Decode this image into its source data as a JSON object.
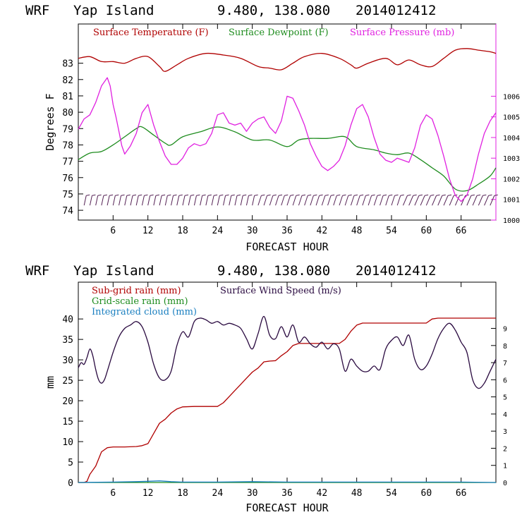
{
  "chart_data": [
    {
      "type": "line",
      "header": {
        "model": "WRF",
        "location": "Yap Island",
        "coords": "9.480, 138.080",
        "run": "2014012412"
      },
      "xlabel": "FORECAST HOUR",
      "ylabel": "Degrees F",
      "xlim": [
        0,
        72
      ],
      "x_ticks": [
        6,
        12,
        18,
        24,
        30,
        36,
        42,
        48,
        54,
        60,
        66
      ],
      "x_tick_labels": [
        "6",
        "12",
        "18",
        "24",
        "30",
        "36",
        "42",
        "48",
        "54",
        "60",
        "66"
      ],
      "ylim": [
        73.4,
        85.4
      ],
      "y_ticks": [
        74,
        75,
        76,
        77,
        78,
        79,
        80,
        81,
        82,
        83
      ],
      "y_tick_labels": [
        "74",
        "75",
        "76",
        "77",
        "78",
        "79",
        "80",
        "81",
        "82",
        "83"
      ],
      "y2lim": [
        1000,
        1009.5
      ],
      "y2_ticks": [
        1000,
        1001,
        1002,
        1003,
        1004,
        1005,
        1006
      ],
      "y2_tick_labels": [
        "1000",
        "1001",
        "1002",
        "1003",
        "1004",
        "1005",
        "1006"
      ],
      "legend": [
        "Surface Temperature (F)",
        "Surface Dewpoint (F)",
        "Surface Pressure (mb)"
      ],
      "colors": {
        "temperature": "#b00000",
        "dewpoint": "#1e8c1e",
        "pressure": "#e020e0",
        "barbs": "#552255"
      },
      "series": [
        {
          "name": "Surface Temperature (F)",
          "axis": "left",
          "x": [
            0,
            2,
            4,
            6,
            8,
            10,
            12,
            14,
            15,
            17,
            19,
            22,
            25,
            28,
            31,
            33,
            35,
            37,
            39,
            42,
            45,
            47,
            48,
            50,
            53,
            55,
            57,
            59,
            61,
            63,
            65,
            67,
            69,
            71,
            72
          ],
          "values": [
            83.3,
            83.4,
            83.1,
            83.1,
            83.0,
            83.3,
            83.4,
            82.8,
            82.5,
            82.9,
            83.3,
            83.6,
            83.5,
            83.3,
            82.8,
            82.7,
            82.6,
            83.0,
            83.4,
            83.6,
            83.3,
            82.9,
            82.7,
            83.0,
            83.3,
            82.9,
            83.2,
            82.9,
            82.8,
            83.3,
            83.8,
            83.9,
            83.8,
            83.7,
            83.6
          ]
        },
        {
          "name": "Surface Dewpoint (F)",
          "axis": "left",
          "x": [
            0,
            2,
            4,
            6,
            8,
            10,
            11,
            13,
            15,
            16,
            18,
            21,
            24,
            27,
            30,
            33,
            36,
            38,
            40,
            43,
            46,
            48,
            51,
            53,
            55,
            57,
            59,
            61,
            63,
            65,
            67,
            69,
            71,
            72
          ],
          "values": [
            77.1,
            77.5,
            77.6,
            78.0,
            78.5,
            79.0,
            79.1,
            78.6,
            78.1,
            78.0,
            78.5,
            78.8,
            79.1,
            78.8,
            78.3,
            78.3,
            77.9,
            78.3,
            78.4,
            78.4,
            78.5,
            77.9,
            77.7,
            77.5,
            77.4,
            77.5,
            77.1,
            76.6,
            76.1,
            75.3,
            75.2,
            75.6,
            76.1,
            76.6
          ]
        },
        {
          "name": "Surface Pressure (mb)",
          "axis": "right",
          "x": [
            0,
            1,
            2,
            3,
            4,
            5,
            5.5,
            6,
            6.5,
            7,
            7.5,
            8,
            9,
            10,
            11,
            12,
            13,
            14,
            15,
            16,
            17,
            18,
            19,
            20,
            21,
            22,
            23,
            24,
            25,
            26,
            27,
            28,
            29,
            30,
            31,
            32,
            33,
            34,
            35,
            36,
            37,
            38,
            39,
            40,
            41,
            42,
            43,
            44,
            45,
            46,
            47,
            48,
            49,
            50,
            51,
            52,
            53,
            54,
            55,
            56,
            57,
            58,
            59,
            60,
            61,
            62,
            63,
            64,
            65,
            66,
            67,
            68,
            69,
            70,
            71,
            72
          ],
          "values": [
            1004.4,
            1004.9,
            1005.1,
            1005.7,
            1006.5,
            1006.9,
            1006.5,
            1005.6,
            1005.0,
            1004.3,
            1003.6,
            1003.2,
            1003.6,
            1004.2,
            1005.2,
            1005.6,
            1004.6,
            1003.8,
            1003.1,
            1002.7,
            1002.7,
            1003.0,
            1003.5,
            1003.7,
            1003.6,
            1003.7,
            1004.2,
            1005.1,
            1005.2,
            1004.7,
            1004.6,
            1004.7,
            1004.3,
            1004.7,
            1004.9,
            1005.0,
            1004.5,
            1004.2,
            1004.8,
            1006.0,
            1005.9,
            1005.3,
            1004.6,
            1003.7,
            1003.1,
            1002.6,
            1002.4,
            1002.6,
            1002.9,
            1003.6,
            1004.6,
            1005.4,
            1005.6,
            1005.0,
            1004.0,
            1003.2,
            1002.9,
            1002.8,
            1003.0,
            1002.9,
            1002.8,
            1003.5,
            1004.6,
            1005.1,
            1004.9,
            1004.1,
            1003.1,
            1002.0,
            1001.2,
            1000.9,
            1001.2,
            1002.0,
            1003.2,
            1004.2,
            1004.8,
            1005.2
          ]
        }
      ],
      "wind_barbs": {
        "x_start": 1,
        "x_step": 1,
        "count": 71
      }
    },
    {
      "type": "line",
      "header": {
        "model": "WRF",
        "location": "Yap Island",
        "coords": "9.480, 138.080",
        "run": "2014012412"
      },
      "xlabel": "FORECAST HOUR",
      "ylabel": "mm",
      "xlim": [
        0,
        72
      ],
      "x_ticks": [
        6,
        12,
        18,
        24,
        30,
        36,
        42,
        48,
        54,
        60,
        66
      ],
      "x_tick_labels": [
        "6",
        "12",
        "18",
        "24",
        "30",
        "36",
        "42",
        "48",
        "54",
        "60",
        "66"
      ],
      "ylim": [
        0,
        49
      ],
      "y_ticks": [
        0,
        5,
        10,
        15,
        20,
        25,
        30,
        35,
        40
      ],
      "y_tick_labels": [
        "0",
        "5",
        "10",
        "15",
        "20",
        "25",
        "30",
        "35",
        "40"
      ],
      "y2lim": [
        0,
        11.7
      ],
      "y2_ticks": [
        0,
        1,
        2,
        3,
        4,
        5,
        6,
        7,
        8,
        9
      ],
      "y2_tick_labels": [
        "0",
        "1",
        "2",
        "3",
        "4",
        "5",
        "6",
        "7",
        "8",
        "9"
      ],
      "legend": [
        "Sub-grid rain (mm)",
        "Grid-scale rain (mm)",
        "Integrated cloud (mm)",
        "Surface Wind Speed (m/s)"
      ],
      "colors": {
        "subgrid": "#b00000",
        "gridscale": "#1e8c1e",
        "cloud": "#1a7fc0",
        "wind": "#2a0a40"
      },
      "series": [
        {
          "name": "Sub-grid rain (mm)",
          "axis": "left",
          "x": [
            0,
            1,
            1.5,
            2,
            3,
            4,
            5,
            6,
            8,
            10,
            11,
            12,
            13,
            14,
            15,
            16,
            17,
            18,
            20,
            22,
            24,
            25,
            26,
            27,
            28,
            29,
            30,
            31,
            32,
            33,
            34,
            35,
            36,
            37,
            38,
            39,
            40,
            41,
            42,
            43,
            44,
            45,
            46,
            47,
            48,
            49,
            50,
            52,
            54,
            56,
            58,
            59,
            60,
            61,
            62,
            64,
            66,
            68,
            70,
            72
          ],
          "values": [
            0,
            0,
            0.3,
            2,
            4,
            7.5,
            8.5,
            8.7,
            8.7,
            8.8,
            9,
            9.5,
            12,
            14.5,
            15.5,
            17,
            18,
            18.5,
            18.6,
            18.6,
            18.6,
            19.5,
            21,
            22.5,
            24,
            25.5,
            27,
            28,
            29.5,
            29.7,
            29.8,
            31,
            32,
            33.5,
            34,
            34,
            34,
            34,
            34,
            34,
            34,
            34,
            35,
            37,
            38.5,
            39,
            39,
            39,
            39,
            39,
            39,
            39,
            39,
            40,
            40.2,
            40.2,
            40.2,
            40.2,
            40.2,
            40.2
          ]
        },
        {
          "name": "Grid-scale rain (mm)",
          "axis": "left",
          "x": [
            0,
            72
          ],
          "values": [
            0,
            0
          ]
        },
        {
          "name": "Integrated cloud (mm)",
          "axis": "left",
          "x": [
            0,
            6,
            10,
            12,
            14,
            16,
            18,
            24,
            30,
            36,
            42,
            48,
            54,
            60,
            66,
            72
          ],
          "values": [
            0,
            0.1,
            0.2,
            0.3,
            0.4,
            0.2,
            0.1,
            0.1,
            0.2,
            0.1,
            0.1,
            0.1,
            0.1,
            0.1,
            0.1,
            0
          ]
        },
        {
          "name": "Surface Wind Speed (m/s)",
          "axis": "right",
          "x": [
            0,
            0.5,
            1,
            1.5,
            2,
            2.5,
            3,
            3.5,
            4,
            4.5,
            5,
            6,
            7,
            8,
            9,
            10,
            11,
            12,
            13,
            14,
            15,
            16,
            17,
            18,
            19,
            20,
            21,
            22,
            23,
            24,
            25,
            26,
            27,
            28,
            29,
            30,
            31,
            32,
            33,
            34,
            35,
            36,
            37,
            38,
            39,
            40,
            41,
            42,
            43,
            44,
            45,
            46,
            47,
            48,
            49,
            50,
            51,
            52,
            53,
            54,
            55,
            56,
            57,
            58,
            59,
            60,
            61,
            62,
            63,
            64,
            65,
            66,
            67,
            68,
            69,
            70,
            71,
            72
          ],
          "values": [
            6.7,
            7.0,
            6.9,
            7.3,
            7.8,
            7.4,
            6.6,
            6.0,
            5.8,
            6.0,
            6.5,
            7.6,
            8.5,
            9.0,
            9.2,
            9.4,
            9.1,
            8.2,
            6.9,
            6.1,
            6.0,
            6.5,
            8.0,
            8.8,
            8.5,
            9.4,
            9.6,
            9.5,
            9.3,
            9.4,
            9.2,
            9.3,
            9.2,
            9.0,
            8.4,
            7.8,
            8.7,
            9.7,
            8.6,
            8.4,
            9.1,
            8.5,
            9.2,
            8.2,
            8.5,
            8.1,
            7.9,
            8.2,
            7.8,
            8.1,
            7.8,
            6.5,
            7.2,
            6.8,
            6.5,
            6.5,
            6.8,
            6.6,
            7.8,
            8.3,
            8.5,
            8.0,
            8.6,
            7.2,
            6.6,
            6.8,
            7.5,
            8.4,
            9.0,
            9.3,
            8.9,
            8.2,
            7.6,
            6.0,
            5.5,
            5.8,
            6.5,
            7.2
          ]
        }
      ]
    }
  ]
}
